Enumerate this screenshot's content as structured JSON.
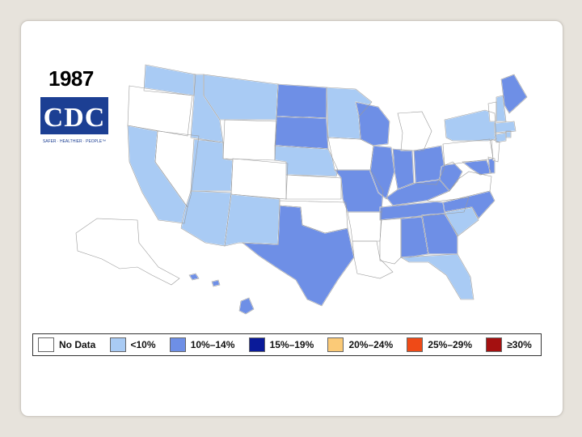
{
  "title": {
    "year": "1987"
  },
  "logo": {
    "text": "CDC",
    "tagline": "SAFER · HEALTHIER · PEOPLE™"
  },
  "legend": [
    {
      "label": "No Data",
      "color": "#ffffff"
    },
    {
      "label": "<10%",
      "color": "#a9cbf4"
    },
    {
      "label": "10%–14%",
      "color": "#6e8fe6"
    },
    {
      "label": "15%–19%",
      "color": "#0a1a99"
    },
    {
      "label": "20%–24%",
      "color": "#fbca77"
    },
    {
      "label": "25%–29%",
      "color": "#ef4a17"
    },
    {
      "label": "≥30%",
      "color": "#a41010"
    }
  ],
  "states": {
    "WA": "<10%",
    "OR": "No Data",
    "CA": "<10%",
    "ID": "<10%",
    "NV": "No Data",
    "MT": "<10%",
    "WY": "No Data",
    "UT": "<10%",
    "AZ": "<10%",
    "CO": "No Data",
    "NM": "<10%",
    "ND": "10%–14%",
    "SD": "10%–14%",
    "NE": "<10%",
    "KS": "No Data",
    "OK": "No Data",
    "TX": "10%–14%",
    "MN": "<10%",
    "IA": "No Data",
    "MO": "10%–14%",
    "AR": "No Data",
    "LA": "No Data",
    "WI": "10%–14%",
    "IL": "10%–14%",
    "MS": "No Data",
    "MI": "No Data",
    "IN": "10%–14%",
    "KY": "10%–14%",
    "TN": "10%–14%",
    "AL": "10%–14%",
    "OH": "10%–14%",
    "WV": "10%–14%",
    "GA": "10%–14%",
    "FL": "<10%",
    "SC": "<10%",
    "NC": "10%–14%",
    "VA": "No Data",
    "MD": "10%–14%",
    "DE": "10%–14%",
    "PA": "No Data",
    "NY": "<10%",
    "NJ": "No Data",
    "CT": "<10%",
    "RI": "<10%",
    "MA": "<10%",
    "VT": "No Data",
    "NH": "<10%",
    "ME": "10%–14%",
    "AK": "No Data",
    "HI": "10%–14%"
  }
}
